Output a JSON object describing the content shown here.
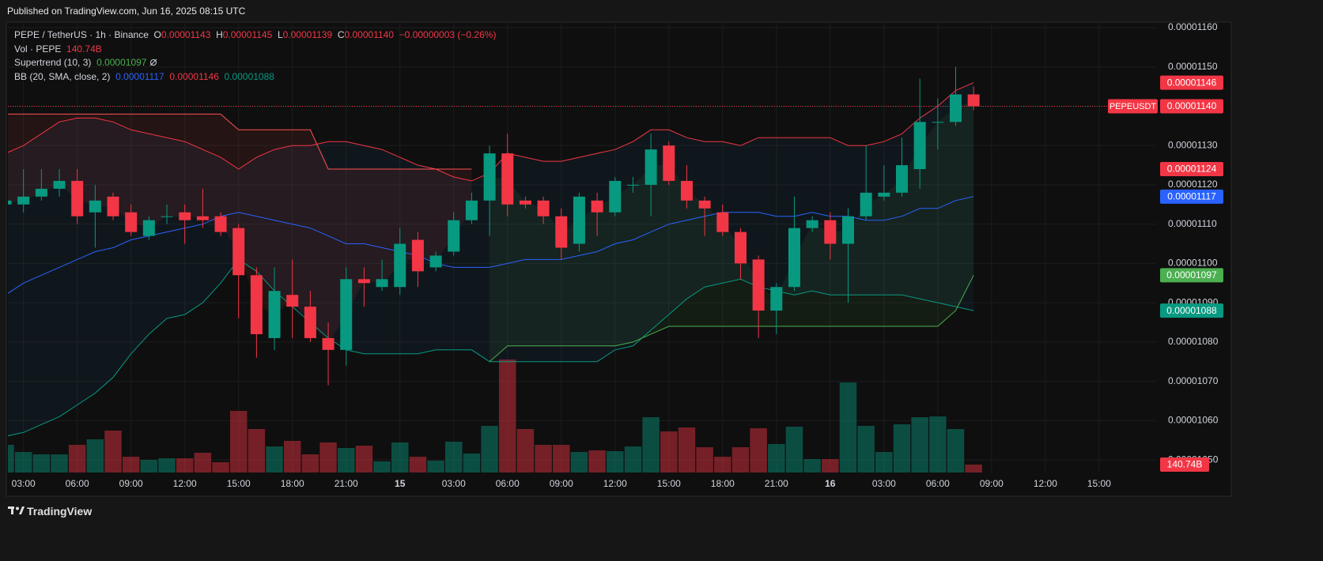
{
  "header": {
    "published": "Published on TradingView.com, Jun 16, 2025 08:15 UTC",
    "brand": "TradingView"
  },
  "chart_data": {
    "type": "candlestick",
    "legend": {
      "symbol": "PEPE / TetherUS · 1h · Binance",
      "ohlc": [
        {
          "key": "O",
          "value": "0.00001143"
        },
        {
          "key": "H",
          "value": "0.00001145"
        },
        {
          "key": "L",
          "value": "0.00001139"
        },
        {
          "key": "C",
          "value": "0.00001140"
        }
      ],
      "change": "−0.00000003 (−0.26%)",
      "volume": {
        "name": "Vol · PEPE",
        "value": "140.74B"
      },
      "supertrend": {
        "name": "Supertrend (10, 3)",
        "value": "0.00001097"
      },
      "bb": {
        "name": "BB (20, SMA, close, 2)",
        "values": [
          "0.00001117",
          "0.00001146",
          "0.00001088"
        ]
      }
    },
    "categories": [
      null,
      "03:00",
      null,
      null,
      "06:00",
      null,
      null,
      "09:00",
      null,
      null,
      "12:00",
      null,
      null,
      "15:00",
      null,
      null,
      "18:00",
      null,
      null,
      "21:00",
      null,
      null,
      "15",
      null,
      null,
      "03:00",
      null,
      null,
      "06:00",
      null,
      null,
      "09:00",
      null,
      null,
      "12:00",
      null,
      null,
      "15:00",
      null,
      null,
      "18:00",
      null,
      null,
      "21:00",
      null,
      null,
      "16",
      null,
      null,
      "03:00",
      null,
      null,
      "06:00",
      null,
      null,
      "09:00",
      null,
      null,
      "12:00",
      null,
      null,
      "15:00"
    ],
    "day_labels": [
      "15",
      "16"
    ],
    "open": [
      1.115e-05,
      1.115e-05,
      1.117e-05,
      1.119e-05,
      1.121e-05,
      1.113e-05,
      1.117e-05,
      1.113e-05,
      1.107e-05,
      1.112e-05,
      1.113e-05,
      1.112e-05,
      1.112e-05,
      1.109e-05,
      1.097e-05,
      1.081e-05,
      1.092e-05,
      1.089e-05,
      1.081e-05,
      1.078e-05,
      1.096e-05,
      1.094e-05,
      1.094e-05,
      1.106e-05,
      1.099e-05,
      1.103e-05,
      1.111e-05,
      1.116e-05,
      1.128e-05,
      1.116e-05,
      1.116e-05,
      1.112e-05,
      1.105e-05,
      1.116e-05,
      1.113e-05,
      1.12e-05,
      1.12e-05,
      1.13e-05,
      1.121e-05,
      1.116e-05,
      1.113e-05,
      1.108e-05,
      1.101e-05,
      1.088e-05,
      1.094e-05,
      1.109e-05,
      1.111e-05,
      1.105e-05,
      1.112e-05,
      1.117e-05,
      1.118e-05,
      1.124e-05,
      1.136e-05,
      1.136e-05,
      1.143e-05,
      null,
      null,
      null,
      null,
      null,
      null,
      null
    ],
    "high": [
      1.117e-05,
      1.124e-05,
      1.124e-05,
      1.124e-05,
      1.124e-05,
      1.12e-05,
      1.118e-05,
      1.115e-05,
      1.112e-05,
      1.115e-05,
      1.115e-05,
      1.119e-05,
      1.113e-05,
      1.11e-05,
      1.099e-05,
      1.099e-05,
      1.101e-05,
      1.093e-05,
      1.085e-05,
      1.099e-05,
      1.099e-05,
      1.101e-05,
      1.109e-05,
      1.108e-05,
      1.103e-05,
      1.113e-05,
      1.118e-05,
      1.13e-05,
      1.133e-05,
      1.117e-05,
      1.117e-05,
      1.114e-05,
      1.118e-05,
      1.118e-05,
      1.122e-05,
      1.122e-05,
      1.133e-05,
      1.131e-05,
      1.125e-05,
      1.117e-05,
      1.115e-05,
      1.109e-05,
      1.102e-05,
      1.095e-05,
      1.117e-05,
      1.112e-05,
      1.113e-05,
      1.114e-05,
      1.13e-05,
      1.125e-05,
      1.132e-05,
      1.147e-05,
      1.142e-05,
      1.15e-05,
      1.145e-05,
      null,
      null,
      null,
      null,
      null,
      null,
      null
    ],
    "low": [
      1.114e-05,
      1.113e-05,
      1.116e-05,
      1.117e-05,
      1.11e-05,
      1.104e-05,
      1.111e-05,
      1.107e-05,
      1.106e-05,
      1.11e-05,
      1.105e-05,
      1.109e-05,
      1.107e-05,
      1.086e-05,
      1.076e-05,
      1.078e-05,
      1.081e-05,
      1.08e-05,
      1.069e-05,
      1.074e-05,
      1.089e-05,
      1.093e-05,
      1.092e-05,
      1.094e-05,
      1.098e-05,
      1.102e-05,
      1.11e-05,
      1.107e-05,
      1.112e-05,
      1.114e-05,
      1.11e-05,
      1.101e-05,
      1.103e-05,
      1.107e-05,
      1.112e-05,
      1.118e-05,
      1.112e-05,
      1.12e-05,
      1.114e-05,
      1.107e-05,
      1.107e-05,
      1.096e-05,
      1.081e-05,
      1.082e-05,
      1.093e-05,
      1.108e-05,
      1.101e-05,
      1.09e-05,
      1.111e-05,
      1.116e-05,
      1.117e-05,
      1.119e-05,
      1.129e-05,
      1.135e-05,
      1.139e-05,
      null,
      null,
      null,
      null,
      null,
      null,
      null
    ],
    "close": [
      1.116e-05,
      1.117e-05,
      1.119e-05,
      1.121e-05,
      1.112e-05,
      1.116e-05,
      1.112e-05,
      1.108e-05,
      1.111e-05,
      1.112e-05,
      1.111e-05,
      1.111e-05,
      1.108e-05,
      1.097e-05,
      1.082e-05,
      1.093e-05,
      1.089e-05,
      1.081e-05,
      1.078e-05,
      1.096e-05,
      1.095e-05,
      1.096e-05,
      1.105e-05,
      1.098e-05,
      1.102e-05,
      1.111e-05,
      1.116e-05,
      1.128e-05,
      1.115e-05,
      1.115e-05,
      1.112e-05,
      1.104e-05,
      1.117e-05,
      1.113e-05,
      1.121e-05,
      1.12e-05,
      1.129e-05,
      1.121e-05,
      1.116e-05,
      1.114e-05,
      1.108e-05,
      1.1e-05,
      1.088e-05,
      1.094e-05,
      1.109e-05,
      1.111e-05,
      1.105e-05,
      1.112e-05,
      1.118e-05,
      1.118e-05,
      1.125e-05,
      1.136e-05,
      1.136e-05,
      1.143e-05,
      1.14e-05,
      null,
      null,
      null,
      null,
      null,
      null,
      null
    ],
    "up_color": "#089981",
    "down_color": "#f23645",
    "volume": [
      492,
      366,
      324,
      323,
      492,
      591,
      746,
      281,
      225,
      253,
      253,
      352,
      183,
      1097,
      774,
      464,
      563,
      324,
      535,
      436,
      478,
      197,
      535,
      281,
      211,
      549,
      338,
      830,
      2012,
      774,
      492,
      492,
      366,
      394,
      380,
      464,
      985,
      732,
      802,
      450,
      281,
      450,
      788,
      507,
      816,
      239,
      239,
      1604,
      830,
      366,
      858,
      985,
      999,
      774,
      140.74,
      null,
      null,
      null,
      null,
      null,
      null,
      null
    ],
    "volume_lim": [
      0,
      8020
    ],
    "bb": {
      "upper": {
        "color": "#f23645",
        "values": [
          1.128e-05,
          1.13e-05,
          1.133e-05,
          1.136e-05,
          1.137e-05,
          1.137e-05,
          1.136e-05,
          1.134e-05,
          1.133e-05,
          1.132e-05,
          1.131e-05,
          1.129e-05,
          1.127e-05,
          1.124e-05,
          1.127e-05,
          1.129e-05,
          1.13e-05,
          1.13e-05,
          1.131e-05,
          1.131e-05,
          1.13e-05,
          1.129e-05,
          1.127e-05,
          1.125e-05,
          1.124e-05,
          1.122e-05,
          1.121e-05,
          1.123e-05,
          1.128e-05,
          1.127e-05,
          1.126e-05,
          1.126e-05,
          1.127e-05,
          1.128e-05,
          1.129e-05,
          1.131e-05,
          1.134e-05,
          1.134e-05,
          1.132e-05,
          1.131e-05,
          1.131e-05,
          1.13e-05,
          1.132e-05,
          1.132e-05,
          1.132e-05,
          1.132e-05,
          1.132e-05,
          1.13e-05,
          1.13e-05,
          1.131e-05,
          1.133e-05,
          1.137e-05,
          1.14e-05,
          1.144e-05,
          1.146e-05,
          null,
          null,
          null,
          null,
          null,
          null,
          null
        ]
      },
      "basis": {
        "color": "#2962ff",
        "values": [
          1.092e-05,
          1.095e-05,
          1.097e-05,
          1.099e-05,
          1.101e-05,
          1.103e-05,
          1.104e-05,
          1.106e-05,
          1.107e-05,
          1.108e-05,
          1.109e-05,
          1.11e-05,
          1.112e-05,
          1.113e-05,
          1.112e-05,
          1.111e-05,
          1.11e-05,
          1.109e-05,
          1.107e-05,
          1.105e-05,
          1.105e-05,
          1.104e-05,
          1.103e-05,
          1.102e-05,
          1.1e-05,
          1.099e-05,
          1.099e-05,
          1.099e-05,
          1.1e-05,
          1.101e-05,
          1.101e-05,
          1.101e-05,
          1.102e-05,
          1.103e-05,
          1.105e-05,
          1.106e-05,
          1.108e-05,
          1.11e-05,
          1.111e-05,
          1.112e-05,
          1.113e-05,
          1.113e-05,
          1.113e-05,
          1.112e-05,
          1.112e-05,
          1.113e-05,
          1.112e-05,
          1.112e-05,
          1.111e-05,
          1.111e-05,
          1.112e-05,
          1.114e-05,
          1.114e-05,
          1.116e-05,
          1.117e-05,
          null,
          null,
          null,
          null,
          null,
          null,
          null
        ]
      },
      "lower": {
        "color": "#089981",
        "values": [
          1.056e-05,
          1.057e-05,
          1.059e-05,
          1.061e-05,
          1.064e-05,
          1.067e-05,
          1.071e-05,
          1.077e-05,
          1.082e-05,
          1.086e-05,
          1.087e-05,
          1.09e-05,
          1.095e-05,
          1.101e-05,
          1.098e-05,
          1.093e-05,
          1.089e-05,
          1.085e-05,
          1.081e-05,
          1.078e-05,
          1.077e-05,
          1.077e-05,
          1.077e-05,
          1.077e-05,
          1.078e-05,
          1.078e-05,
          1.078e-05,
          1.075e-05,
          1.075e-05,
          1.075e-05,
          1.075e-05,
          1.075e-05,
          1.075e-05,
          1.075e-05,
          1.078e-05,
          1.079e-05,
          1.083e-05,
          1.087e-05,
          1.091e-05,
          1.094e-05,
          1.095e-05,
          1.096e-05,
          1.094e-05,
          1.093e-05,
          1.092e-05,
          1.093e-05,
          1.092e-05,
          1.092e-05,
          1.092e-05,
          1.092e-05,
          1.092e-05,
          1.091e-05,
          1.09e-05,
          1.089e-05,
          1.088e-05,
          null,
          null,
          null,
          null,
          null,
          null,
          null
        ]
      }
    },
    "supertrend": {
      "down": {
        "color": "#ff5252",
        "values": [
          1.138e-05,
          1.138e-05,
          1.138e-05,
          1.138e-05,
          1.138e-05,
          1.138e-05,
          1.138e-05,
          1.138e-05,
          1.138e-05,
          1.138e-05,
          1.138e-05,
          1.138e-05,
          1.138e-05,
          1.134e-05,
          1.134e-05,
          1.134e-05,
          1.134e-05,
          1.134e-05,
          1.124e-05,
          1.124e-05,
          1.124e-05,
          1.124e-05,
          1.124e-05,
          1.124e-05,
          1.124e-05,
          1.124e-05,
          1.124e-05,
          null,
          null,
          null,
          null,
          null,
          null,
          null,
          null,
          null,
          null,
          null,
          null,
          null,
          null,
          null,
          null,
          null,
          null,
          null,
          null,
          null,
          null,
          null,
          null,
          null,
          null,
          null,
          null,
          null,
          null,
          null,
          null,
          null,
          null,
          null
        ]
      },
      "up": {
        "color": "#4caf50",
        "values": [
          null,
          null,
          null,
          null,
          null,
          null,
          null,
          null,
          null,
          null,
          null,
          null,
          null,
          null,
          null,
          null,
          null,
          null,
          null,
          null,
          null,
          null,
          null,
          null,
          null,
          null,
          null,
          1.075e-05,
          1.079e-05,
          1.079e-05,
          1.079e-05,
          1.079e-05,
          1.079e-05,
          1.079e-05,
          1.079e-05,
          1.08e-05,
          1.082e-05,
          1.084e-05,
          1.084e-05,
          1.084e-05,
          1.084e-05,
          1.084e-05,
          1.084e-05,
          1.084e-05,
          1.084e-05,
          1.084e-05,
          1.084e-05,
          1.084e-05,
          1.084e-05,
          1.084e-05,
          1.084e-05,
          1.084e-05,
          1.084e-05,
          1.088e-05,
          1.097e-05,
          null,
          null,
          null,
          null,
          null,
          null,
          null
        ]
      }
    },
    "ylim": [
      1.0468e-05,
      1.1614e-05
    ],
    "yticks": [
      {
        "value": 1.05e-05,
        "label": "0.00001050"
      },
      {
        "value": 1.06e-05,
        "label": "0.00001060"
      },
      {
        "value": 1.07e-05,
        "label": "0.00001070"
      },
      {
        "value": 1.08e-05,
        "label": "0.00001080"
      },
      {
        "value": 1.09e-05,
        "label": "0.00001090"
      },
      {
        "value": 1.1e-05,
        "label": "0.00001100"
      },
      {
        "value": 1.11e-05,
        "label": "0.00001110"
      },
      {
        "value": 1.12e-05,
        "label": "0.00001120"
      },
      {
        "value": 1.13e-05,
        "label": "0.00001130"
      },
      {
        "value": 1.14e-05,
        "label": "0.00001140"
      },
      {
        "value": 1.15e-05,
        "label": "0.00001150"
      },
      {
        "value": 1.16e-05,
        "label": "0.00001160"
      }
    ],
    "grid": true,
    "price_labels": [
      {
        "value": 1.146e-05,
        "label": "0.00001146",
        "color": "#f23645"
      },
      {
        "value": 1.14e-05,
        "label": "0.00001140",
        "tag": "PEPEUSDT",
        "color": "#f23645"
      },
      {
        "value": 1.124e-05,
        "label": "0.00001124",
        "color": "#f23645"
      },
      {
        "value": 1.117e-05,
        "label": "0.00001117",
        "color": "#2962ff"
      },
      {
        "value": 1.097e-05,
        "label": "0.00001097",
        "color": "#4caf50"
      },
      {
        "value": 1.088e-05,
        "label": "0.00001088",
        "color": "#089981"
      }
    ],
    "volume_label": {
      "value": 140.74,
      "label": "140.74B",
      "color": "#f23645"
    }
  }
}
